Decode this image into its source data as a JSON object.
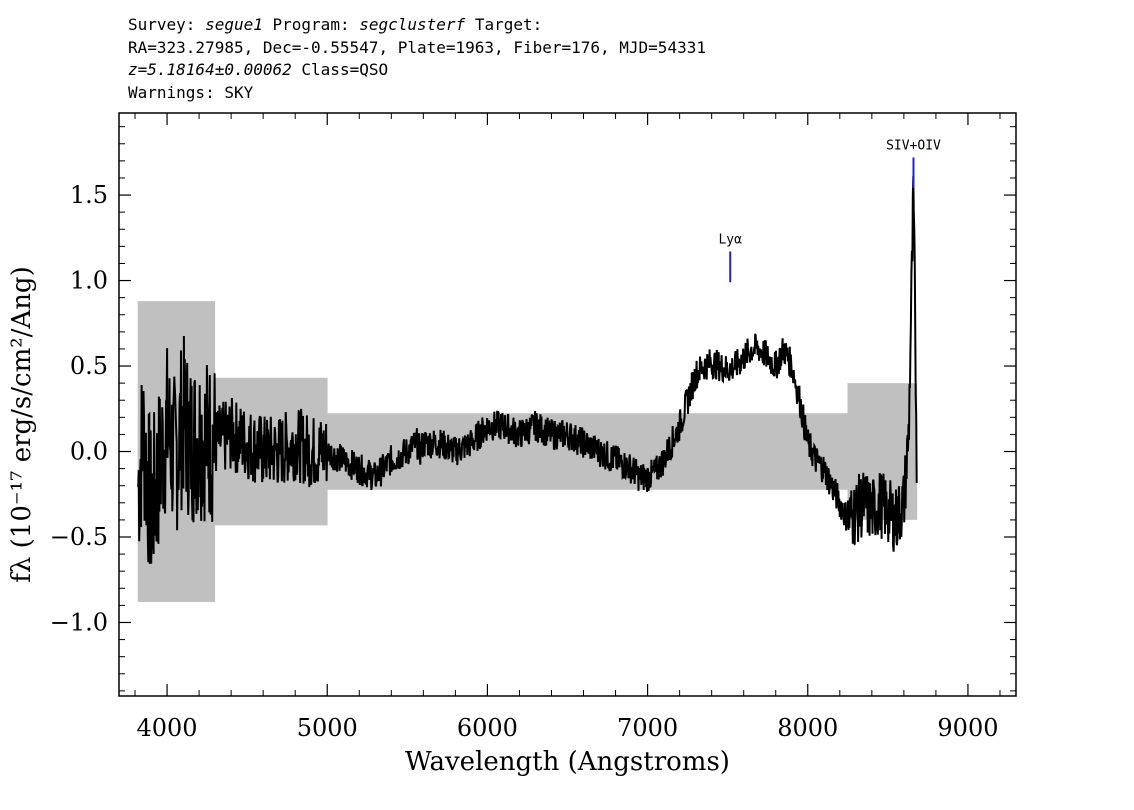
{
  "header": {
    "survey_label": "Survey:",
    "survey": "segue1",
    "program_label": "Program:",
    "program": "segclusterf",
    "target_label": "Target:",
    "line2": "RA=323.27985, Dec=-0.55547, Plate=1963, Fiber=176, MJD=54331",
    "redshift": "z=5.18164±0.00062",
    "class_text": "Class=QSO",
    "warnings": "Warnings: SKY"
  },
  "chart_data": {
    "type": "line",
    "xlabel": "Wavelength (Angstroms)",
    "ylabel": "fλ (10⁻¹⁷ erg/s/cm²/Ang)",
    "xlim": [
      3700,
      9300
    ],
    "ylim": [
      -1.43,
      1.98
    ],
    "x_ticks": [
      4000,
      5000,
      6000,
      7000,
      8000,
      9000
    ],
    "y_ticks": [
      -1.0,
      -0.5,
      0.0,
      0.5,
      1.0,
      1.5
    ],
    "y_tick_labels": [
      "−1.0",
      "−0.5",
      "0.0",
      "0.5",
      "1.0",
      "1.5"
    ],
    "grid": false,
    "colors": {
      "flux": "#000000",
      "error": "#c0c0c0",
      "line_marker": "#2020d0"
    },
    "lines": [
      {
        "name": "Lyα",
        "wavelength": 7516,
        "marker_top": 1.17,
        "marker_bottom": 0.99
      },
      {
        "name": "SIV+OIV",
        "wavelength": 8660,
        "marker_top": 1.72,
        "marker_bottom": 1.54
      }
    ],
    "series": [
      {
        "role": "flux",
        "x": [
          3820,
          3850,
          3900,
          3950,
          4000,
          4050,
          4100,
          4150,
          4200,
          4300,
          4400,
          4500,
          4600,
          4700,
          4800,
          4900,
          5000,
          5100,
          5200,
          5300,
          5400,
          5500,
          5560,
          5580,
          5600,
          5700,
          5800,
          5900,
          6000,
          6100,
          6200,
          6300,
          6400,
          6500,
          6600,
          6700,
          6800,
          6900,
          6950,
          7000,
          7050,
          7100,
          7150,
          7200,
          7250,
          7300,
          7350,
          7400,
          7450,
          7500,
          7550,
          7600,
          7650,
          7700,
          7750,
          7800,
          7850,
          7900,
          7950,
          8000,
          8050,
          8100,
          8150,
          8200,
          8250,
          8300,
          8350,
          8400,
          8450,
          8500,
          8550,
          8600,
          8630,
          8660,
          8680
        ],
        "y": [
          -0.2,
          0.1,
          -0.35,
          -0.1,
          0.15,
          -0.05,
          0.2,
          0.05,
          0.1,
          0.05,
          0.1,
          0.05,
          0.0,
          0.0,
          0.05,
          0.0,
          0.0,
          -0.05,
          -0.1,
          -0.15,
          -0.05,
          0.0,
          0.05,
          0.0,
          0.05,
          0.05,
          0.0,
          0.05,
          0.15,
          0.15,
          0.1,
          0.15,
          0.1,
          0.1,
          0.05,
          0.0,
          -0.05,
          -0.1,
          -0.15,
          -0.15,
          -0.12,
          -0.05,
          0.05,
          0.15,
          0.3,
          0.45,
          0.5,
          0.52,
          0.5,
          0.48,
          0.5,
          0.55,
          0.6,
          0.6,
          0.55,
          0.5,
          0.6,
          0.5,
          0.3,
          0.05,
          -0.05,
          -0.1,
          -0.2,
          -0.3,
          -0.4,
          -0.35,
          -0.3,
          -0.35,
          -0.3,
          -0.35,
          -0.4,
          -0.3,
          0.1,
          1.5,
          0.0
        ]
      }
    ]
  }
}
